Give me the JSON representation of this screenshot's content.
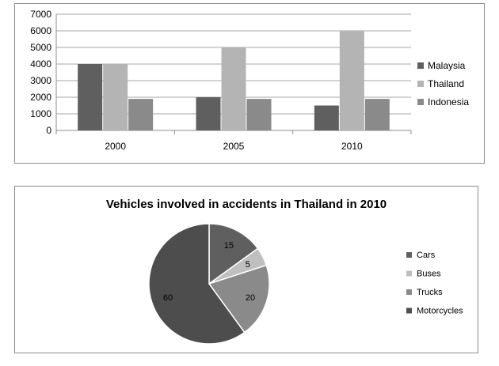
{
  "chart_data": [
    {
      "type": "bar",
      "categories": [
        "2000",
        "2005",
        "2010"
      ],
      "series": [
        {
          "name": "Malaysia",
          "values": [
            4000,
            2000,
            1500
          ],
          "color": "#5f5f5f"
        },
        {
          "name": "Thailand",
          "values": [
            4000,
            5000,
            6000
          ],
          "color": "#b4b4b4"
        },
        {
          "name": "Indonesia",
          "values": [
            1900,
            1900,
            1900
          ],
          "color": "#8a8a8a"
        }
      ],
      "yticks": [
        "0",
        "1000",
        "2000",
        "3000",
        "4000",
        "5000",
        "6000",
        "7000"
      ],
      "ylim": [
        0,
        7000
      ],
      "grid": true,
      "legend": "right"
    },
    {
      "type": "pie",
      "title": "Vehicles involved in accidents in Thailand in 2010",
      "slices": [
        {
          "label": "Cars",
          "value": 15,
          "color": "#5f5f5f"
        },
        {
          "label": "Buses",
          "value": 5,
          "color": "#bfbfbf"
        },
        {
          "label": "Trucks",
          "value": 20,
          "color": "#8a8a8a"
        },
        {
          "label": "Motorcycles",
          "value": 60,
          "color": "#4d4d4d"
        }
      ],
      "legend": "right"
    }
  ]
}
